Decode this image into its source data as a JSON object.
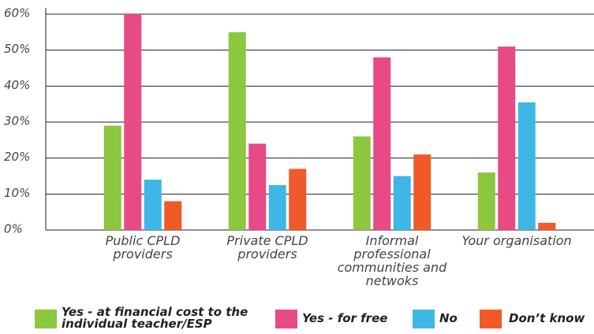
{
  "chart_data": {
    "type": "bar",
    "categories": [
      "Public CPLD providers",
      "Private CPLD providers",
      "Informal professional communities and netwoks",
      "Your organisation"
    ],
    "series": [
      {
        "name": "Yes - at financial cost to the individual teacher/ESP",
        "color": "#8dc63f",
        "values": [
          29,
          55,
          26,
          16
        ]
      },
      {
        "name": "Yes - for free",
        "color": "#e84a86",
        "values": [
          60,
          24,
          48,
          51
        ]
      },
      {
        "name": "No",
        "color": "#3fb7e6",
        "values": [
          14,
          12.5,
          15,
          35.5
        ]
      },
      {
        "name": "Don’t know",
        "color": "#f05a28",
        "values": [
          8,
          17,
          21,
          2
        ]
      }
    ],
    "ylim": [
      0,
      60
    ],
    "yticks": [
      {
        "value": 0,
        "label": "0%"
      },
      {
        "value": 10,
        "label": "10%"
      },
      {
        "value": 20,
        "label": "20%"
      },
      {
        "value": 30,
        "label": "30%"
      },
      {
        "value": 40,
        "label": "40%"
      },
      {
        "value": 50,
        "label": "50%"
      },
      {
        "value": 60,
        "label": "60%"
      }
    ],
    "grid": true
  }
}
